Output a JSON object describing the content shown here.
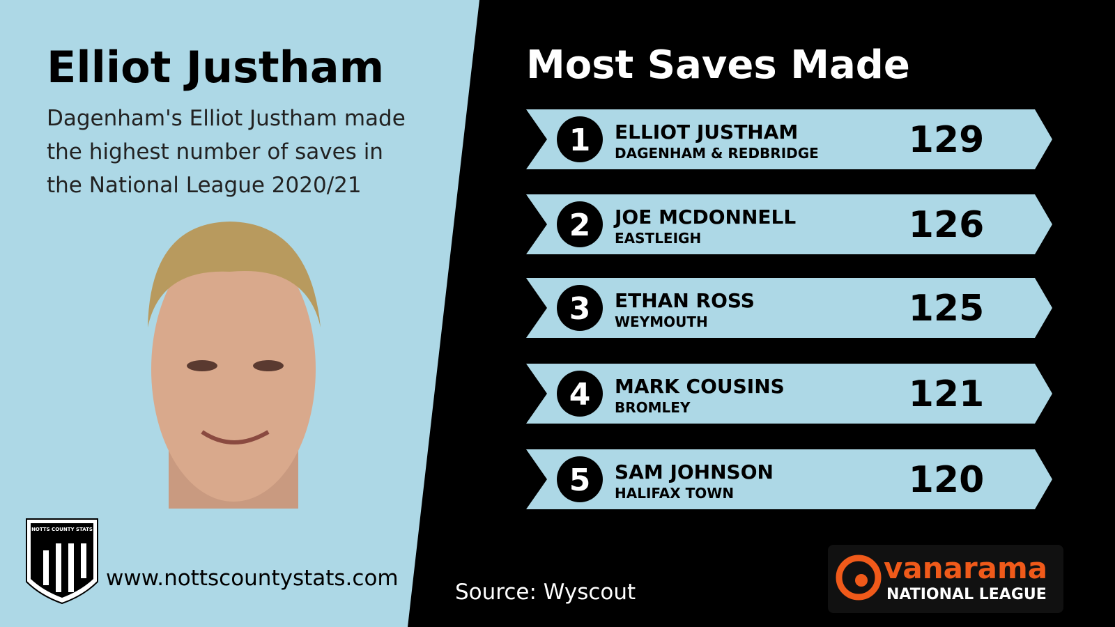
{
  "left": {
    "title": "Elliot Justham",
    "description": [
      "Dagenham's Elliot Justham made",
      "the highest number of saves in",
      "the National League 2020/21"
    ],
    "badge": "NOTTS COUNTY STATS",
    "website": "www.nottscountystats.com"
  },
  "right": {
    "title": "Most Saves Made",
    "rows": [
      {
        "rank": "1",
        "name": "ELLIOT JUSTHAM",
        "team": "DAGENHAM & REDBRIDGE",
        "saves": "129"
      },
      {
        "rank": "2",
        "name": "JOE MCDONNELL",
        "team": "EASTLEIGH",
        "saves": "126"
      },
      {
        "rank": "3",
        "name": "ETHAN ROSS",
        "team": "WEYMOUTH",
        "saves": "125"
      },
      {
        "rank": "4",
        "name": "MARK COUSINS",
        "team": "BROMLEY",
        "saves": "121"
      },
      {
        "rank": "5",
        "name": "SAM JOHNSON",
        "team": "HALIFAX TOWN",
        "saves": "120"
      }
    ],
    "source": "Source: Wyscout",
    "logo": {
      "brand": "vanarama",
      "league": "NATIONAL LEAGUE"
    }
  }
}
